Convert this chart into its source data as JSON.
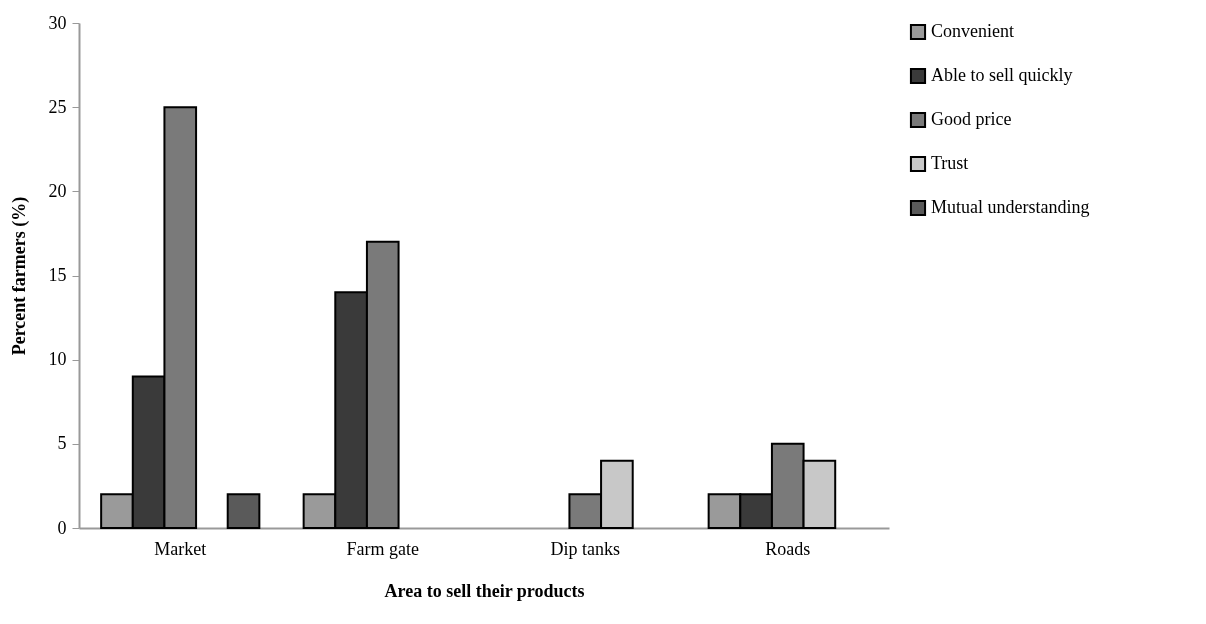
{
  "chart_data": {
    "type": "bar",
    "xlabel": "Area to sell their products",
    "ylabel": "Percent farmers (%)",
    "categories": [
      "Market",
      "Farm gate",
      "Dip tanks",
      "Roads"
    ],
    "series": [
      {
        "name": "Convenient",
        "color": "#9a9a9a",
        "values": [
          2,
          2,
          null,
          2
        ]
      },
      {
        "name": "Able to sell quickly",
        "color": "#3a3a3a",
        "values": [
          9,
          14,
          null,
          2
        ]
      },
      {
        "name": "Good price",
        "color": "#7a7a7a",
        "values": [
          25,
          17,
          2,
          5
        ]
      },
      {
        "name": "Trust",
        "color": "#c8c8c8",
        "values": [
          null,
          null,
          4,
          4
        ]
      },
      {
        "name": "Mutual understanding",
        "color": "#5a5a5a",
        "values": [
          2,
          null,
          null,
          null
        ]
      }
    ],
    "ylim": [
      0,
      30
    ],
    "yticks": [
      0,
      5,
      10,
      15,
      20,
      25,
      30
    ],
    "grid": false,
    "legend": "top right"
  }
}
